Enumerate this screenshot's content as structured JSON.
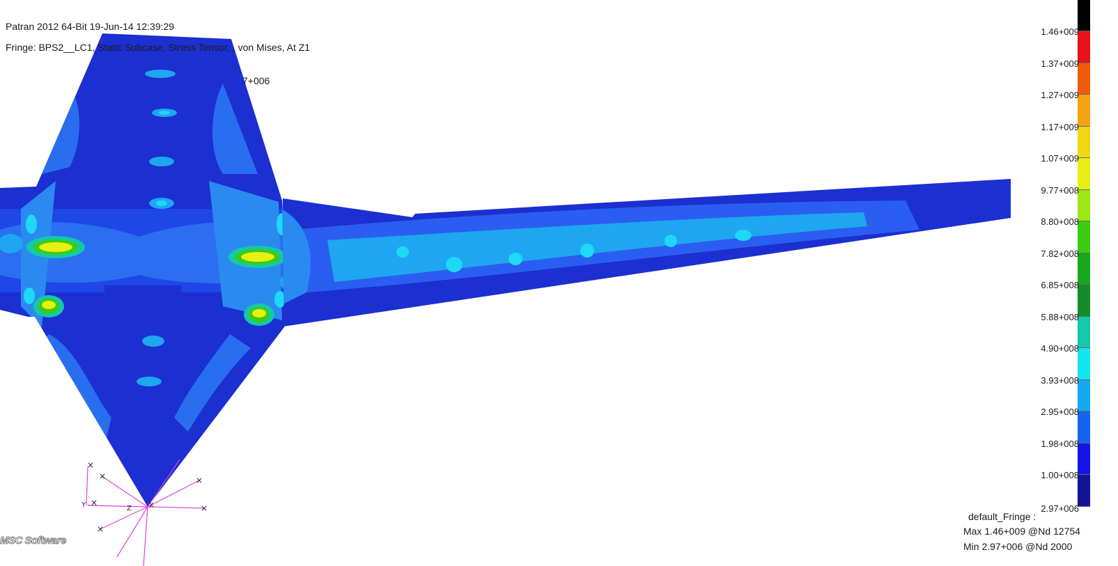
{
  "header": {
    "app_line": "Patran 2012 64-Bit 19-Jun-14 12:39:29",
    "fringe_line": "Fringe: BPS2__LC1, Static Subcase, Stress Tensor, , von Mises, At Z1",
    "deform_fragment": "7+006"
  },
  "legend": {
    "labels": [
      "1.46+009",
      "1.37+009",
      "1.27+009",
      "1.17+009",
      "1.07+009",
      "9.77+008",
      "8.80+008",
      "7.82+008",
      "6.85+008",
      "5.88+008",
      "4.90+008",
      "3.93+008",
      "2.95+008",
      "1.98+008",
      "1.00+008",
      "2.97+006"
    ],
    "colors": [
      "#000000",
      "#e8101a",
      "#f05a0f",
      "#f5a314",
      "#f0d814",
      "#e6f014",
      "#9ee614",
      "#3ccc14",
      "#1aa81a",
      "#148c28",
      "#14c8aa",
      "#14e6f0",
      "#14a8f0",
      "#1464f0",
      "#1414e6",
      "#141496"
    ]
  },
  "info": {
    "title": "default_Fringe :",
    "max_line": "Max 1.46+009 @Nd 12754",
    "min_line": "Min 2.97+006 @Nd 2000"
  },
  "axes": {
    "x": "X",
    "y": "Y",
    "z": "Z"
  },
  "logo_text": "MSC Software"
}
